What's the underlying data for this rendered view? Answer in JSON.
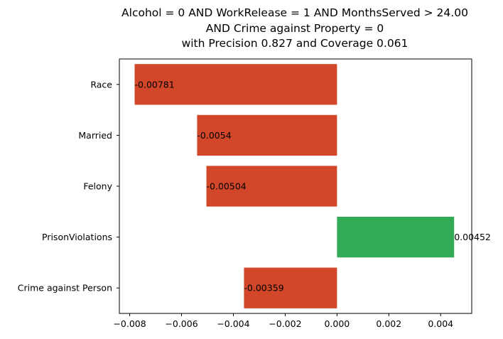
{
  "chart_data": {
    "type": "bar",
    "orientation": "horizontal",
    "title_lines": [
      "Alcohol = 0 AND WorkRelease = 1 AND MonthsServed > 24.00",
      "AND Crime against Property = 0",
      "with Precision 0.827 and Coverage 0.061"
    ],
    "categories": [
      "Race",
      "Married",
      "Felony",
      "PrisonViolations",
      "Crime against Person"
    ],
    "values": [
      -0.00781,
      -0.0054,
      -0.00504,
      0.00452,
      -0.00359
    ],
    "value_labels": [
      "-0.00781",
      "-0.0054",
      "-0.00504",
      "0.00452",
      "-0.00359"
    ],
    "xlim": [
      -0.0084,
      0.0052
    ],
    "xticks": [
      -0.008,
      -0.006,
      -0.004,
      -0.002,
      0.0,
      0.002,
      0.004
    ],
    "xtick_labels": [
      "−0.008",
      "−0.006",
      "−0.004",
      "−0.002",
      "0.000",
      "0.002",
      "0.004"
    ],
    "grid": false,
    "colors": {
      "negative": "#d2472a",
      "positive": "#33aa55"
    }
  }
}
